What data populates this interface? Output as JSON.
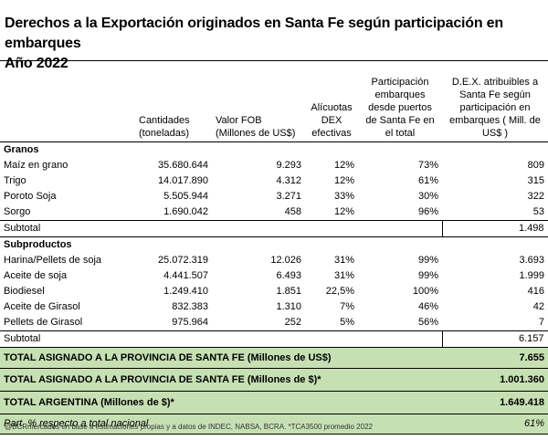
{
  "title": {
    "line1": "Derechos a la Exportación originados en Santa Fe según participación en embarques",
    "line2": "Año 2022"
  },
  "columns": {
    "c1": "Cantidades (toneladas)",
    "c2": "Valor FOB (Millones de US$)",
    "c3": "Alícuotas DEX efectivas",
    "c4": "Participación embarques desde puertos de Santa Fe en el total",
    "c5": "D.E.X. atribuibles a Santa Fe según participación en embarques ( Mill. de US$ )"
  },
  "granos": {
    "label": "Granos",
    "rows": [
      {
        "name": "Maíz en grano",
        "qty": "35.680.644",
        "fob": "9.293",
        "rate": "12%",
        "share": "73%",
        "dex": "809"
      },
      {
        "name": "Trigo",
        "qty": "14.017.890",
        "fob": "4.312",
        "rate": "12%",
        "share": "61%",
        "dex": "315"
      },
      {
        "name": "Poroto Soja",
        "qty": "5.505.944",
        "fob": "3.271",
        "rate": "33%",
        "share": "30%",
        "dex": "322"
      },
      {
        "name": "Sorgo",
        "qty": "1.690.042",
        "fob": "458",
        "rate": "12%",
        "share": "96%",
        "dex": "53"
      }
    ],
    "subtotal_label": "Subtotal",
    "subtotal_value": "1.498"
  },
  "subproductos": {
    "label": "Subproductos",
    "rows": [
      {
        "name": "Harina/Pellets de soja",
        "qty": "25.072.319",
        "fob": "12.026",
        "rate": "31%",
        "share": "99%",
        "dex": "3.693"
      },
      {
        "name": "Aceite de soja",
        "qty": "4.441.507",
        "fob": "6.493",
        "rate": "31%",
        "share": "99%",
        "dex": "1.999"
      },
      {
        "name": "Biodiesel",
        "qty": "1.249.410",
        "fob": "1.851",
        "rate": "22,5%",
        "share": "100%",
        "dex": "416"
      },
      {
        "name": "Aceite de Girasol",
        "qty": "832.383",
        "fob": "1.310",
        "rate": "7%",
        "share": "46%",
        "dex": "42"
      },
      {
        "name": "Pellets de Girasol",
        "qty": "975.964",
        "fob": "252",
        "rate": "5%",
        "share": "56%",
        "dex": "7"
      }
    ],
    "subtotal_label": "Subtotal",
    "subtotal_value": "6.157"
  },
  "totals": [
    {
      "label": "TOTAL ASIGNADO A LA PROVINCIA DE SANTA FE (Millones de US$)",
      "value": "7.655"
    },
    {
      "label": "TOTAL ASIGNADO A LA PROVINCIA DE SANTA FE (Millones de $)*",
      "value": "1.001.360"
    },
    {
      "label": "TOTAL ARGENTINA (Millones de $)*",
      "value": "1.649.418"
    }
  ],
  "part": {
    "label": "Part.  % respecto a total nacional",
    "value": "61%"
  },
  "source": "@BCRmercados en base a estimaciones propias y a datos de INDEC, NABSA, BCRA. *TCA3500 promedio 2022",
  "colors": {
    "green": "#c6e0b4"
  }
}
